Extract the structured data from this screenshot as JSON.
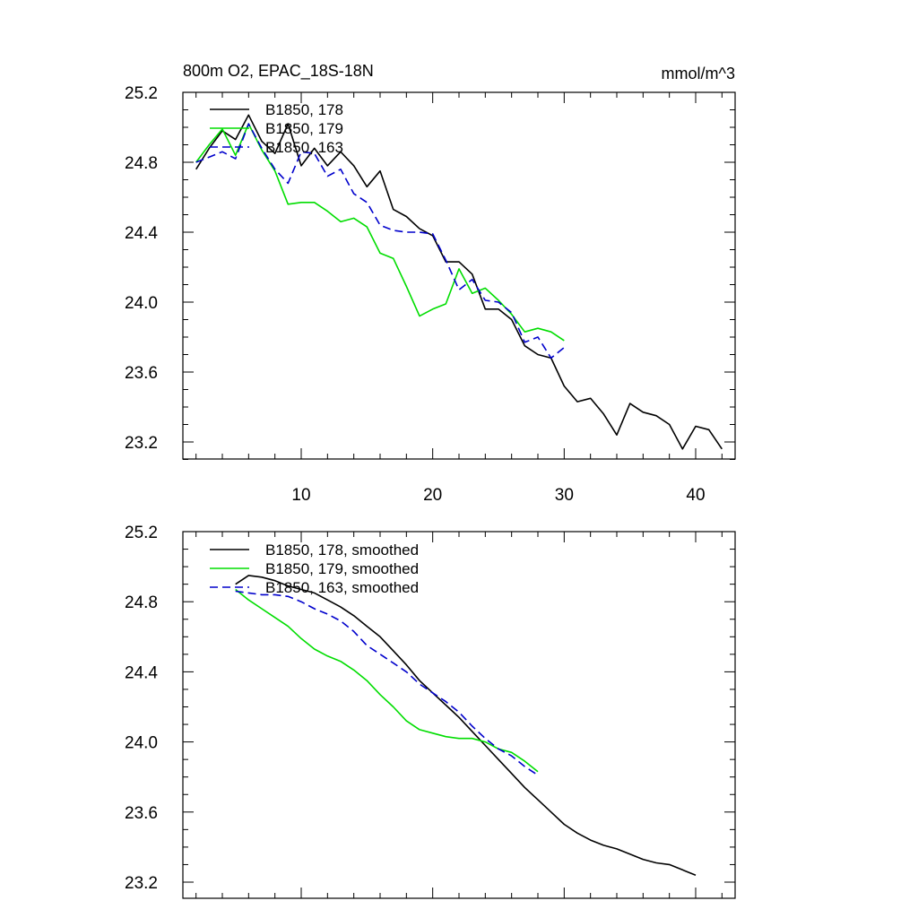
{
  "header": {
    "title": "800m O2, EPAC_18S-18N",
    "units": "mmol/m^3"
  },
  "chart_data": [
    {
      "type": "line",
      "panel": "top",
      "xlim": [
        1,
        43
      ],
      "ylim": [
        23.1,
        25.2
      ],
      "xticks": [
        10,
        20,
        30,
        40
      ],
      "xtick_labels": [
        "10",
        "20",
        "30",
        "40"
      ],
      "yticks": [
        23.2,
        23.6,
        24.0,
        24.4,
        24.8,
        25.2
      ],
      "ytick_labels": [
        "23.2",
        "23.6",
        "24.0",
        "24.4",
        "24.8",
        "25.2"
      ],
      "legend_position": "top-left",
      "series": [
        {
          "name": "B1850, 178",
          "color": "#000000",
          "dash": "solid",
          "x": [
            2,
            3,
            4,
            5,
            6,
            7,
            8,
            9,
            10,
            11,
            12,
            13,
            14,
            15,
            16,
            17,
            18,
            19,
            20,
            21,
            22,
            23,
            24,
            25,
            26,
            27,
            28,
            29,
            30,
            31,
            32,
            33,
            34,
            35,
            36,
            37,
            38,
            39,
            40,
            41,
            42
          ],
          "y": [
            24.76,
            24.88,
            24.98,
            24.93,
            25.07,
            24.92,
            24.85,
            25.02,
            24.78,
            24.88,
            24.78,
            24.86,
            24.78,
            24.66,
            24.75,
            24.53,
            24.49,
            24.42,
            24.38,
            24.23,
            24.23,
            24.16,
            23.96,
            23.96,
            23.9,
            23.75,
            23.7,
            23.68,
            23.52,
            23.43,
            23.45,
            23.36,
            23.24,
            23.42,
            23.37,
            23.35,
            23.3,
            23.16,
            23.29,
            23.27,
            23.16
          ]
        },
        {
          "name": "B1850, 179",
          "color": "#00dd00",
          "dash": "solid",
          "x": [
            2,
            3,
            4,
            5,
            6,
            7,
            8,
            9,
            10,
            11,
            12,
            13,
            14,
            15,
            16,
            17,
            18,
            19,
            20,
            21,
            22,
            23,
            24,
            25,
            26,
            27,
            28,
            29,
            30
          ],
          "y": [
            24.8,
            24.9,
            24.99,
            24.84,
            25.02,
            24.87,
            24.75,
            24.56,
            24.57,
            24.57,
            24.52,
            24.46,
            24.48,
            24.43,
            24.28,
            24.25,
            24.09,
            23.92,
            23.96,
            23.99,
            24.19,
            24.05,
            24.08,
            24.01,
            23.93,
            23.83,
            23.85,
            23.83,
            23.78
          ]
        },
        {
          "name": "B1850, 163",
          "color": "#0000cc",
          "dash": "dashed",
          "x": [
            2,
            3,
            4,
            5,
            6,
            7,
            8,
            9,
            10,
            11,
            12,
            13,
            14,
            15,
            16,
            17,
            18,
            19,
            20,
            21,
            22,
            23,
            24,
            25,
            26,
            27,
            28,
            29,
            30
          ],
          "y": [
            24.8,
            24.83,
            24.86,
            24.82,
            25.02,
            24.88,
            24.76,
            24.68,
            24.86,
            24.85,
            24.72,
            24.76,
            24.62,
            24.57,
            24.44,
            24.41,
            24.4,
            24.4,
            24.39,
            24.24,
            24.07,
            24.13,
            24.01,
            24.0,
            23.94,
            23.77,
            23.8,
            23.68,
            23.74
          ]
        }
      ]
    },
    {
      "type": "line",
      "panel": "bottom",
      "xlim": [
        1,
        43
      ],
      "ylim": [
        23.1,
        25.2
      ],
      "xticks": [
        10,
        20,
        30,
        40
      ],
      "yticks": [
        23.2,
        23.6,
        24.0,
        24.4,
        24.8,
        25.2
      ],
      "ytick_labels": [
        "23.2",
        "23.6",
        "24.0",
        "24.4",
        "24.8",
        "25.2"
      ],
      "legend_position": "top-left",
      "series": [
        {
          "name": "B1850, 178, smoothed",
          "color": "#000000",
          "dash": "solid",
          "x": [
            5,
            6,
            7,
            8,
            9,
            10,
            11,
            12,
            13,
            14,
            15,
            16,
            17,
            18,
            19,
            20,
            21,
            22,
            23,
            24,
            25,
            26,
            27,
            28,
            29,
            30,
            31,
            32,
            33,
            34,
            35,
            36,
            37,
            38,
            39,
            40
          ],
          "y": [
            24.9,
            24.95,
            24.94,
            24.92,
            24.89,
            24.87,
            24.85,
            24.81,
            24.77,
            24.72,
            24.66,
            24.6,
            24.52,
            24.44,
            24.35,
            24.28,
            24.21,
            24.14,
            24.06,
            23.98,
            23.9,
            23.82,
            23.74,
            23.67,
            23.6,
            23.53,
            23.48,
            23.44,
            23.41,
            23.39,
            23.36,
            23.33,
            23.31,
            23.3,
            23.27,
            23.24
          ]
        },
        {
          "name": "B1850, 179, smoothed",
          "color": "#00dd00",
          "dash": "solid",
          "x": [
            5,
            6,
            7,
            8,
            9,
            10,
            11,
            12,
            13,
            14,
            15,
            16,
            17,
            18,
            19,
            20,
            21,
            22,
            23,
            24,
            25,
            26,
            27,
            28
          ],
          "y": [
            24.87,
            24.81,
            24.76,
            24.71,
            24.66,
            24.59,
            24.53,
            24.49,
            24.46,
            24.41,
            24.35,
            24.27,
            24.2,
            24.12,
            24.07,
            24.05,
            24.03,
            24.02,
            24.02,
            24.0,
            23.96,
            23.94,
            23.89,
            23.83
          ]
        },
        {
          "name": "B1850, 163, smoothed",
          "color": "#0000cc",
          "dash": "dashed",
          "x": [
            5,
            6,
            7,
            8,
            9,
            10,
            11,
            12,
            13,
            14,
            15,
            16,
            17,
            18,
            19,
            20,
            21,
            22,
            23,
            24,
            25,
            26,
            27,
            28
          ],
          "y": [
            24.86,
            24.85,
            24.84,
            24.84,
            24.83,
            24.8,
            24.76,
            24.73,
            24.69,
            24.63,
            24.55,
            24.5,
            24.45,
            24.4,
            24.33,
            24.28,
            24.23,
            24.17,
            24.09,
            24.02,
            23.96,
            23.92,
            23.86,
            23.81
          ]
        }
      ]
    }
  ]
}
